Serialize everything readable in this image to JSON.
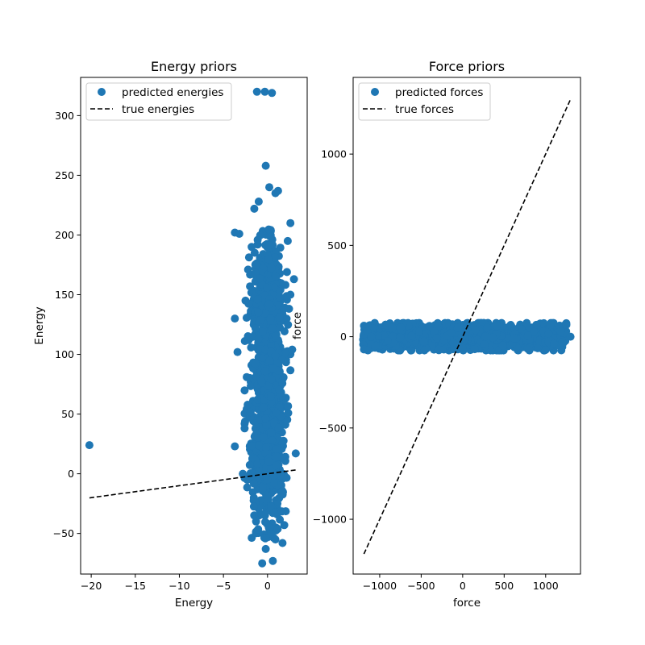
{
  "chart_data": [
    {
      "type": "scatter",
      "title": "Energy priors",
      "xlabel": "Energy",
      "ylabel": "Energy",
      "xlim": [
        -21.2,
        4.5
      ],
      "ylim": [
        -84,
        332
      ],
      "xticks": [
        -20,
        -15,
        -10,
        -5,
        0
      ],
      "xtick_labels": [
        "−20",
        "−15",
        "−10",
        "−5",
        "0"
      ],
      "yticks": [
        -50,
        0,
        50,
        100,
        150,
        200,
        250,
        300
      ],
      "ytick_labels": [
        "−50",
        "0",
        "50",
        "100",
        "150",
        "200",
        "250",
        "300"
      ],
      "grid": false,
      "legend_position": "upper-left",
      "series": [
        {
          "name": "predicted energies",
          "kind": "scatter",
          "color": "#1f77b4",
          "notable_points": [
            [
              -20.2,
              24
            ],
            [
              -1.2,
              320
            ],
            [
              -0.3,
              320
            ],
            [
              0.5,
              319
            ],
            [
              -0.2,
              258
            ],
            [
              -3.7,
              202
            ],
            [
              -3.2,
              201
            ],
            [
              -3.7,
              130
            ],
            [
              -3.4,
              102
            ],
            [
              -3.7,
              23
            ],
            [
              -2.6,
              38
            ],
            [
              -2.8,
              0
            ],
            [
              -1.6,
              0
            ],
            [
              2.6,
              210
            ],
            [
              3.0,
              163
            ],
            [
              3.2,
              17
            ],
            [
              1.9,
              -43
            ],
            [
              -1.0,
              228
            ],
            [
              -1.5,
              222
            ],
            [
              1.2,
              237
            ],
            [
              0.9,
              235
            ],
            [
              0.2,
              240
            ],
            [
              2.3,
              195
            ],
            [
              -0.6,
              -75
            ],
            [
              0.6,
              -73
            ],
            [
              -0.2,
              -63
            ],
            [
              0.9,
              -55
            ],
            [
              1.7,
              -58
            ],
            [
              -1.3,
              -40
            ],
            [
              2.2,
              169
            ],
            [
              2.6,
              150
            ],
            [
              -2.2,
              171
            ],
            [
              -2.5,
              145
            ],
            [
              2.8,
              104
            ],
            [
              -1.8,
              190
            ]
          ],
          "cluster": {
            "x_center": 0.0,
            "x_spread": 0.9,
            "y_min": -50,
            "y_max": 200,
            "count": 1500,
            "y_weights": [
              [
                -55,
                -35,
                0.25
              ],
              [
                -35,
                -10,
                0.6
              ],
              [
                -10,
                0,
                1.5
              ],
              [
                0,
                30,
                2.2
              ],
              [
                30,
                60,
                2.4
              ],
              [
                60,
                90,
                2.4
              ],
              [
                90,
                120,
                2.2
              ],
              [
                120,
                150,
                1.6
              ],
              [
                150,
                180,
                0.9
              ],
              [
                180,
                205,
                0.4
              ]
            ]
          }
        },
        {
          "name": "true energies",
          "kind": "line",
          "dash": "dashed",
          "color": "#000000",
          "x": [
            -20.2,
            3.2
          ],
          "y": [
            -20.2,
            3.2
          ]
        }
      ]
    },
    {
      "type": "scatter",
      "title": "Force priors",
      "xlabel": "force",
      "ylabel": "force",
      "xlim": [
        -1320,
        1420
      ],
      "ylim": [
        -1300,
        1420
      ],
      "xticks": [
        -1000,
        -500,
        0,
        500,
        1000
      ],
      "xtick_labels": [
        "−1000",
        "−500",
        "0",
        "500",
        "1000"
      ],
      "yticks": [
        -1000,
        -500,
        0,
        500,
        1000
      ],
      "ytick_labels": [
        "−1000",
        "−500",
        "0",
        "500",
        "1000"
      ],
      "grid": false,
      "legend_position": "upper-left",
      "series": [
        {
          "name": "predicted forces",
          "kind": "scatter",
          "color": "#1f77b4",
          "notable_points": [
            [
              -1190,
              -70
            ],
            [
              -1190,
              60
            ],
            [
              1300,
              0
            ],
            [
              1250,
              65
            ],
            [
              -1150,
              30
            ],
            [
              -1050,
              -50
            ],
            [
              1180,
              30
            ],
            [
              1100,
              -40
            ],
            [
              1200,
              -30
            ],
            [
              -1100,
              0
            ]
          ],
          "cluster": {
            "x_min": -1200,
            "x_max": 1250,
            "y_center": 0,
            "y_spread": 35,
            "count": 1400
          }
        },
        {
          "name": "true forces",
          "kind": "line",
          "dash": "dashed",
          "color": "#000000",
          "x": [
            -1190,
            1300
          ],
          "y": [
            -1190,
            1300
          ]
        }
      ]
    }
  ]
}
